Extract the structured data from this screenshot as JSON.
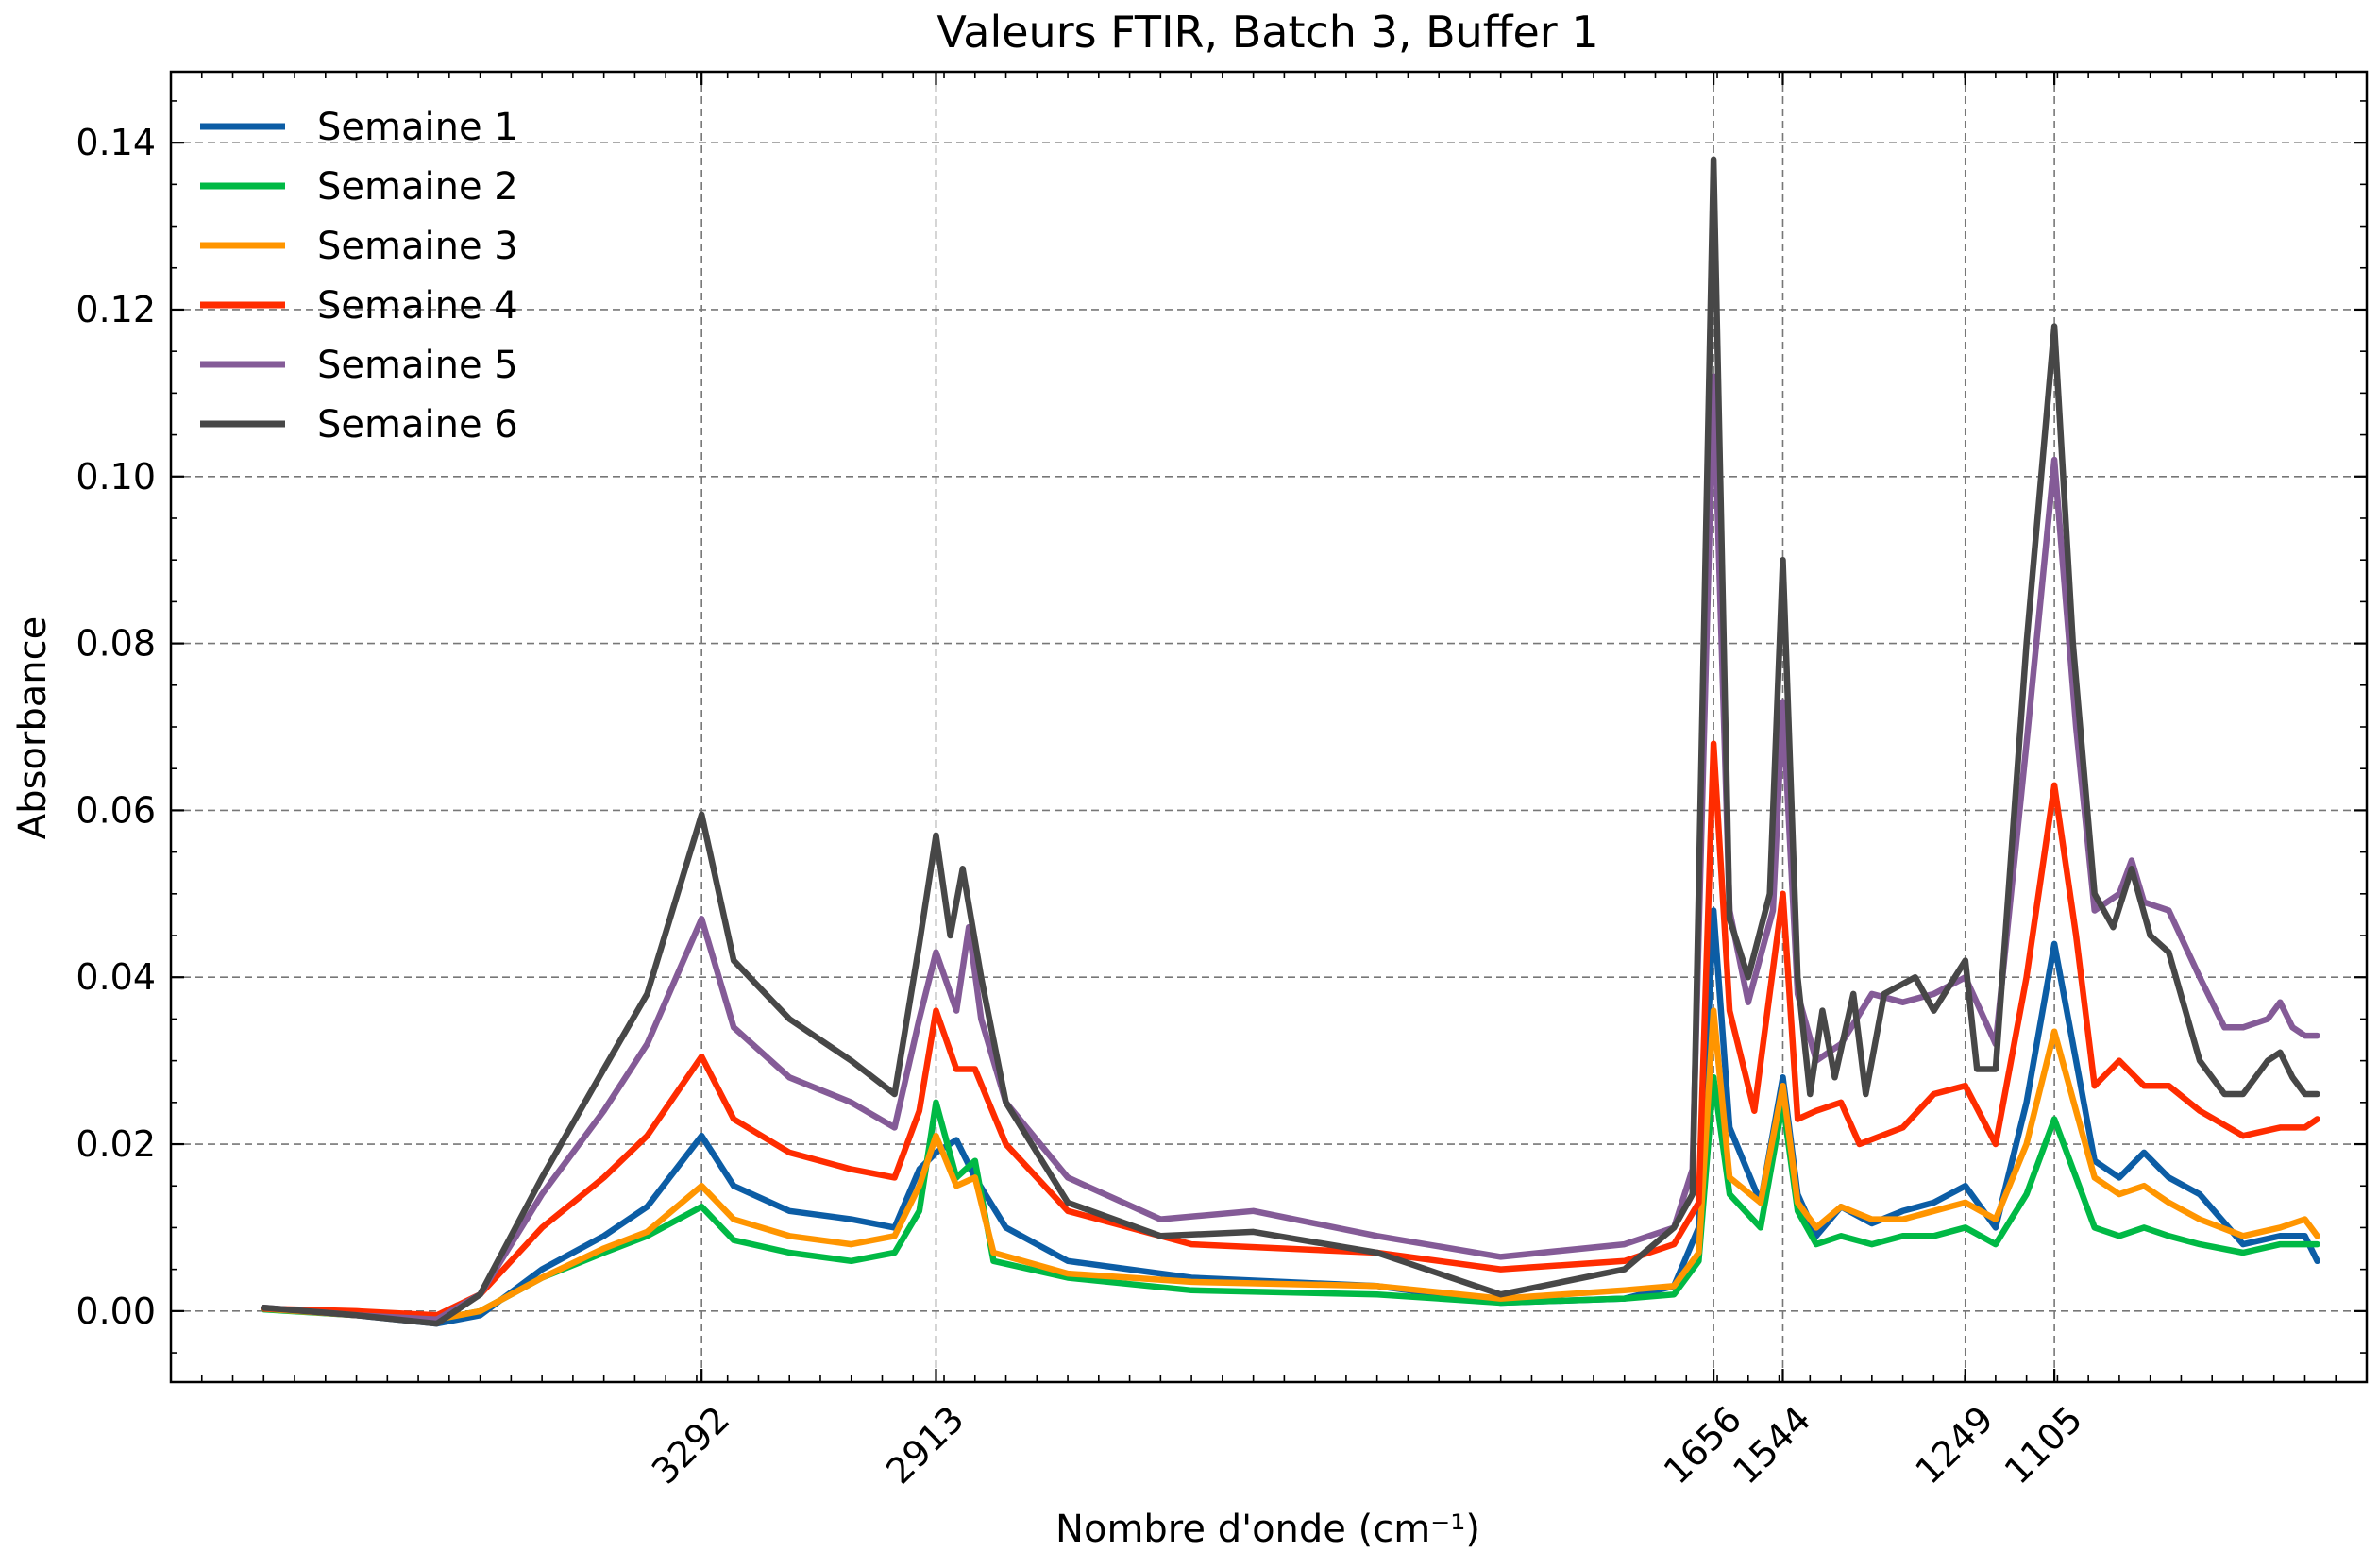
{
  "chart_data": {
    "type": "line",
    "title": "Valeurs FTIR, Batch 3, Buffer 1",
    "xlabel": "Nombre d'onde (cm⁻¹)",
    "ylabel": "Absorbance",
    "xlim": [
      4150,
      600
    ],
    "ylim": [
      -0.0085,
      0.1485
    ],
    "x_reversed": true,
    "grid": true,
    "legend_position": "top-left",
    "xticks": [
      3292,
      2913,
      1656,
      1544,
      1249,
      1105
    ],
    "yticks": [
      0.0,
      0.02,
      0.04,
      0.06,
      0.08,
      0.1,
      0.12,
      0.14
    ],
    "ytick_labels": [
      "0.00",
      "0.02",
      "0.04",
      "0.06",
      "0.08",
      "0.10",
      "0.12",
      "0.14"
    ],
    "series": [
      {
        "name": "Semaine 1",
        "color": "#0C5DA5",
        "points": [
          [
            4000,
            0.0003
          ],
          [
            3850,
            -0.0005
          ],
          [
            3720,
            -0.0015
          ],
          [
            3650,
            -0.0005
          ],
          [
            3550,
            0.005
          ],
          [
            3450,
            0.009
          ],
          [
            3380,
            0.0125
          ],
          [
            3292,
            0.021
          ],
          [
            3240,
            0.015
          ],
          [
            3150,
            0.012
          ],
          [
            3050,
            0.011
          ],
          [
            2980,
            0.01
          ],
          [
            2940,
            0.017
          ],
          [
            2913,
            0.019
          ],
          [
            2880,
            0.0205
          ],
          [
            2850,
            0.016
          ],
          [
            2800,
            0.01
          ],
          [
            2700,
            0.006
          ],
          [
            2500,
            0.004
          ],
          [
            2200,
            0.003
          ],
          [
            2000,
            0.001
          ],
          [
            1800,
            0.0015
          ],
          [
            1720,
            0.003
          ],
          [
            1680,
            0.01
          ],
          [
            1656,
            0.048
          ],
          [
            1630,
            0.022
          ],
          [
            1580,
            0.013
          ],
          [
            1544,
            0.028
          ],
          [
            1520,
            0.014
          ],
          [
            1490,
            0.009
          ],
          [
            1450,
            0.0125
          ],
          [
            1400,
            0.0105
          ],
          [
            1350,
            0.012
          ],
          [
            1300,
            0.013
          ],
          [
            1249,
            0.015
          ],
          [
            1200,
            0.01
          ],
          [
            1150,
            0.025
          ],
          [
            1105,
            0.044
          ],
          [
            1070,
            0.03
          ],
          [
            1040,
            0.018
          ],
          [
            1000,
            0.016
          ],
          [
            960,
            0.019
          ],
          [
            920,
            0.016
          ],
          [
            870,
            0.014
          ],
          [
            800,
            0.008
          ],
          [
            740,
            0.009
          ],
          [
            700,
            0.009
          ],
          [
            680,
            0.006
          ]
        ]
      },
      {
        "name": "Semaine 2",
        "color": "#00B945",
        "points": [
          [
            4000,
            0.0002
          ],
          [
            3850,
            -0.0005
          ],
          [
            3720,
            -0.001
          ],
          [
            3650,
            0.0
          ],
          [
            3550,
            0.004
          ],
          [
            3450,
            0.007
          ],
          [
            3380,
            0.009
          ],
          [
            3292,
            0.0125
          ],
          [
            3240,
            0.0085
          ],
          [
            3150,
            0.007
          ],
          [
            3050,
            0.006
          ],
          [
            2980,
            0.007
          ],
          [
            2940,
            0.012
          ],
          [
            2913,
            0.025
          ],
          [
            2880,
            0.016
          ],
          [
            2850,
            0.018
          ],
          [
            2820,
            0.006
          ],
          [
            2700,
            0.004
          ],
          [
            2500,
            0.0025
          ],
          [
            2200,
            0.002
          ],
          [
            2000,
            0.001
          ],
          [
            1800,
            0.0015
          ],
          [
            1720,
            0.002
          ],
          [
            1680,
            0.006
          ],
          [
            1656,
            0.028
          ],
          [
            1630,
            0.014
          ],
          [
            1580,
            0.01
          ],
          [
            1544,
            0.025
          ],
          [
            1520,
            0.012
          ],
          [
            1490,
            0.008
          ],
          [
            1450,
            0.009
          ],
          [
            1400,
            0.008
          ],
          [
            1350,
            0.009
          ],
          [
            1300,
            0.009
          ],
          [
            1249,
            0.01
          ],
          [
            1200,
            0.008
          ],
          [
            1150,
            0.014
          ],
          [
            1105,
            0.023
          ],
          [
            1070,
            0.016
          ],
          [
            1040,
            0.01
          ],
          [
            1000,
            0.009
          ],
          [
            960,
            0.01
          ],
          [
            920,
            0.009
          ],
          [
            870,
            0.008
          ],
          [
            800,
            0.007
          ],
          [
            740,
            0.008
          ],
          [
            700,
            0.008
          ],
          [
            680,
            0.008
          ]
        ]
      },
      {
        "name": "Semaine 3",
        "color": "#FF9500",
        "points": [
          [
            4000,
            0.0003
          ],
          [
            3850,
            -0.0005
          ],
          [
            3720,
            -0.001
          ],
          [
            3650,
            0.0
          ],
          [
            3550,
            0.004
          ],
          [
            3450,
            0.0075
          ],
          [
            3380,
            0.0095
          ],
          [
            3292,
            0.015
          ],
          [
            3240,
            0.011
          ],
          [
            3150,
            0.009
          ],
          [
            3050,
            0.008
          ],
          [
            2980,
            0.009
          ],
          [
            2940,
            0.015
          ],
          [
            2913,
            0.021
          ],
          [
            2880,
            0.015
          ],
          [
            2850,
            0.016
          ],
          [
            2820,
            0.007
          ],
          [
            2700,
            0.0045
          ],
          [
            2500,
            0.0035
          ],
          [
            2200,
            0.003
          ],
          [
            2000,
            0.0015
          ],
          [
            1800,
            0.0025
          ],
          [
            1720,
            0.003
          ],
          [
            1680,
            0.007
          ],
          [
            1656,
            0.036
          ],
          [
            1630,
            0.016
          ],
          [
            1580,
            0.013
          ],
          [
            1544,
            0.027
          ],
          [
            1520,
            0.013
          ],
          [
            1490,
            0.01
          ],
          [
            1450,
            0.0125
          ],
          [
            1400,
            0.011
          ],
          [
            1350,
            0.011
          ],
          [
            1300,
            0.012
          ],
          [
            1249,
            0.013
          ],
          [
            1200,
            0.011
          ],
          [
            1150,
            0.02
          ],
          [
            1105,
            0.0335
          ],
          [
            1070,
            0.024
          ],
          [
            1040,
            0.016
          ],
          [
            1000,
            0.014
          ],
          [
            960,
            0.015
          ],
          [
            920,
            0.013
          ],
          [
            870,
            0.011
          ],
          [
            800,
            0.009
          ],
          [
            740,
            0.01
          ],
          [
            700,
            0.011
          ],
          [
            680,
            0.009
          ]
        ]
      },
      {
        "name": "Semaine 4",
        "color": "#FF2C00",
        "points": [
          [
            4000,
            0.0003
          ],
          [
            3850,
            0.0
          ],
          [
            3720,
            -0.0005
          ],
          [
            3650,
            0.002
          ],
          [
            3550,
            0.01
          ],
          [
            3450,
            0.016
          ],
          [
            3380,
            0.021
          ],
          [
            3292,
            0.0305
          ],
          [
            3240,
            0.023
          ],
          [
            3150,
            0.019
          ],
          [
            3050,
            0.017
          ],
          [
            2980,
            0.016
          ],
          [
            2940,
            0.024
          ],
          [
            2913,
            0.036
          ],
          [
            2880,
            0.029
          ],
          [
            2850,
            0.029
          ],
          [
            2800,
            0.02
          ],
          [
            2700,
            0.012
          ],
          [
            2500,
            0.008
          ],
          [
            2200,
            0.007
          ],
          [
            2000,
            0.005
          ],
          [
            1800,
            0.006
          ],
          [
            1720,
            0.008
          ],
          [
            1680,
            0.013
          ],
          [
            1656,
            0.068
          ],
          [
            1630,
            0.036
          ],
          [
            1590,
            0.024
          ],
          [
            1544,
            0.05
          ],
          [
            1520,
            0.023
          ],
          [
            1490,
            0.024
          ],
          [
            1450,
            0.025
          ],
          [
            1420,
            0.02
          ],
          [
            1350,
            0.022
          ],
          [
            1300,
            0.026
          ],
          [
            1249,
            0.027
          ],
          [
            1200,
            0.02
          ],
          [
            1150,
            0.04
          ],
          [
            1105,
            0.063
          ],
          [
            1070,
            0.045
          ],
          [
            1040,
            0.027
          ],
          [
            1000,
            0.03
          ],
          [
            960,
            0.027
          ],
          [
            920,
            0.027
          ],
          [
            870,
            0.024
          ],
          [
            800,
            0.021
          ],
          [
            740,
            0.022
          ],
          [
            700,
            0.022
          ],
          [
            680,
            0.023
          ]
        ]
      },
      {
        "name": "Semaine 5",
        "color": "#845B97",
        "points": [
          [
            4000,
            0.0004
          ],
          [
            3850,
            -0.0005
          ],
          [
            3720,
            -0.001
          ],
          [
            3650,
            0.002
          ],
          [
            3550,
            0.014
          ],
          [
            3450,
            0.024
          ],
          [
            3380,
            0.032
          ],
          [
            3292,
            0.047
          ],
          [
            3240,
            0.034
          ],
          [
            3150,
            0.028
          ],
          [
            3050,
            0.025
          ],
          [
            2980,
            0.022
          ],
          [
            2940,
            0.035
          ],
          [
            2913,
            0.043
          ],
          [
            2880,
            0.036
          ],
          [
            2860,
            0.046
          ],
          [
            2840,
            0.035
          ],
          [
            2800,
            0.025
          ],
          [
            2700,
            0.016
          ],
          [
            2550,
            0.011
          ],
          [
            2400,
            0.012
          ],
          [
            2200,
            0.009
          ],
          [
            2000,
            0.0065
          ],
          [
            1800,
            0.008
          ],
          [
            1720,
            0.01
          ],
          [
            1690,
            0.017
          ],
          [
            1656,
            0.112
          ],
          [
            1630,
            0.048
          ],
          [
            1600,
            0.037
          ],
          [
            1560,
            0.048
          ],
          [
            1544,
            0.073
          ],
          [
            1520,
            0.038
          ],
          [
            1490,
            0.03
          ],
          [
            1450,
            0.032
          ],
          [
            1400,
            0.038
          ],
          [
            1350,
            0.037
          ],
          [
            1300,
            0.038
          ],
          [
            1249,
            0.04
          ],
          [
            1200,
            0.032
          ],
          [
            1150,
            0.068
          ],
          [
            1105,
            0.102
          ],
          [
            1070,
            0.07
          ],
          [
            1040,
            0.048
          ],
          [
            1000,
            0.05
          ],
          [
            980,
            0.054
          ],
          [
            960,
            0.049
          ],
          [
            920,
            0.048
          ],
          [
            870,
            0.04
          ],
          [
            830,
            0.034
          ],
          [
            800,
            0.034
          ],
          [
            760,
            0.035
          ],
          [
            740,
            0.037
          ],
          [
            720,
            0.034
          ],
          [
            700,
            0.033
          ],
          [
            680,
            0.033
          ]
        ]
      },
      {
        "name": "Semaine 6",
        "color": "#474747",
        "points": [
          [
            4000,
            0.0004
          ],
          [
            3850,
            -0.0005
          ],
          [
            3720,
            -0.0015
          ],
          [
            3650,
            0.002
          ],
          [
            3550,
            0.016
          ],
          [
            3450,
            0.029
          ],
          [
            3380,
            0.038
          ],
          [
            3292,
            0.0595
          ],
          [
            3240,
            0.042
          ],
          [
            3150,
            0.035
          ],
          [
            3050,
            0.03
          ],
          [
            2980,
            0.026
          ],
          [
            2940,
            0.044
          ],
          [
            2913,
            0.057
          ],
          [
            2890,
            0.045
          ],
          [
            2870,
            0.053
          ],
          [
            2840,
            0.04
          ],
          [
            2800,
            0.025
          ],
          [
            2700,
            0.013
          ],
          [
            2550,
            0.009
          ],
          [
            2400,
            0.0095
          ],
          [
            2200,
            0.007
          ],
          [
            2000,
            0.002
          ],
          [
            1800,
            0.005
          ],
          [
            1720,
            0.01
          ],
          [
            1690,
            0.014
          ],
          [
            1656,
            0.138
          ],
          [
            1630,
            0.047
          ],
          [
            1600,
            0.04
          ],
          [
            1565,
            0.05
          ],
          [
            1544,
            0.09
          ],
          [
            1520,
            0.04
          ],
          [
            1500,
            0.026
          ],
          [
            1480,
            0.036
          ],
          [
            1460,
            0.028
          ],
          [
            1430,
            0.038
          ],
          [
            1410,
            0.026
          ],
          [
            1380,
            0.038
          ],
          [
            1330,
            0.04
          ],
          [
            1300,
            0.036
          ],
          [
            1249,
            0.042
          ],
          [
            1230,
            0.029
          ],
          [
            1200,
            0.029
          ],
          [
            1150,
            0.08
          ],
          [
            1105,
            0.118
          ],
          [
            1075,
            0.08
          ],
          [
            1040,
            0.05
          ],
          [
            1010,
            0.046
          ],
          [
            980,
            0.053
          ],
          [
            950,
            0.045
          ],
          [
            920,
            0.043
          ],
          [
            870,
            0.03
          ],
          [
            830,
            0.026
          ],
          [
            800,
            0.026
          ],
          [
            760,
            0.03
          ],
          [
            740,
            0.031
          ],
          [
            720,
            0.028
          ],
          [
            700,
            0.026
          ],
          [
            680,
            0.026
          ]
        ]
      }
    ]
  }
}
